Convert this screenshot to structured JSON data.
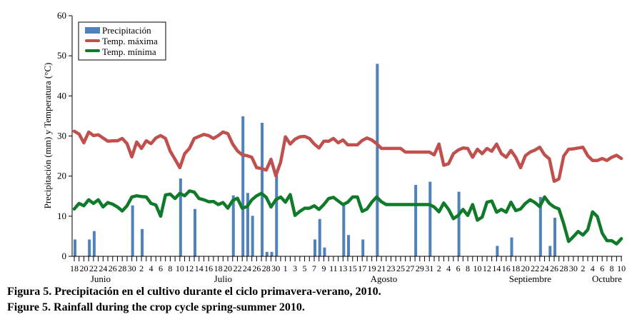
{
  "chart_data": {
    "type": "bar+line",
    "ylabel": "Precipitación (mm) y Temperatura (°C)",
    "ylim": [
      0,
      60
    ],
    "yticks": [
      0,
      10,
      20,
      30,
      40,
      50,
      60
    ],
    "grid": false,
    "legend_position": "top-left",
    "x": [
      "2010-06-18",
      "2010-06-19",
      "2010-06-20",
      "2010-06-21",
      "2010-06-22",
      "2010-06-23",
      "2010-06-24",
      "2010-06-25",
      "2010-06-26",
      "2010-06-27",
      "2010-06-28",
      "2010-06-29",
      "2010-06-30",
      "2010-07-01",
      "2010-07-02",
      "2010-07-03",
      "2010-07-04",
      "2010-07-05",
      "2010-07-06",
      "2010-07-07",
      "2010-07-08",
      "2010-07-09",
      "2010-07-10",
      "2010-07-11",
      "2010-07-12",
      "2010-07-13",
      "2010-07-14",
      "2010-07-15",
      "2010-07-16",
      "2010-07-17",
      "2010-07-18",
      "2010-07-19",
      "2010-07-20",
      "2010-07-21",
      "2010-07-22",
      "2010-07-23",
      "2010-07-24",
      "2010-07-25",
      "2010-07-26",
      "2010-07-27",
      "2010-07-28",
      "2010-07-29",
      "2010-07-30",
      "2010-07-31",
      "2010-08-01",
      "2010-08-02",
      "2010-08-03",
      "2010-08-04",
      "2010-08-05",
      "2010-08-06",
      "2010-08-07",
      "2010-08-08",
      "2010-08-09",
      "2010-08-10",
      "2010-08-11",
      "2010-08-12",
      "2010-08-13",
      "2010-08-14",
      "2010-08-15",
      "2010-08-16",
      "2010-08-17",
      "2010-08-18",
      "2010-08-19",
      "2010-08-20",
      "2010-08-21",
      "2010-08-22",
      "2010-08-23",
      "2010-08-24",
      "2010-08-25",
      "2010-08-26",
      "2010-08-27",
      "2010-08-28",
      "2010-08-29",
      "2010-08-30",
      "2010-08-31",
      "2010-09-01",
      "2010-09-02",
      "2010-09-03",
      "2010-09-04",
      "2010-09-05",
      "2010-09-06",
      "2010-09-07",
      "2010-09-08",
      "2010-09-09",
      "2010-09-10",
      "2010-09-11",
      "2010-09-12",
      "2010-09-13",
      "2010-09-14",
      "2010-09-15",
      "2010-09-16",
      "2010-09-17",
      "2010-09-18",
      "2010-09-19",
      "2010-09-20",
      "2010-09-21",
      "2010-09-22",
      "2010-09-23",
      "2010-09-24",
      "2010-09-25",
      "2010-09-26",
      "2010-09-27",
      "2010-09-28",
      "2010-09-29",
      "2010-09-30",
      "2010-10-01",
      "2010-10-02",
      "2010-10-03",
      "2010-10-04",
      "2010-10-05",
      "2010-10-06",
      "2010-10-07",
      "2010-10-08",
      "2010-10-09",
      "2010-10-10"
    ],
    "xtick_labels": [
      "18",
      "20",
      "22",
      "24",
      "26",
      "28",
      "30",
      "2",
      "4",
      "6",
      "8",
      "10",
      "12",
      "14",
      "16",
      "18",
      "20",
      "22",
      "24",
      "26",
      "28",
      "30",
      "1",
      "3",
      "5",
      "7",
      "9",
      "11",
      "13",
      "15",
      "17",
      "19",
      "21",
      "23",
      "25",
      "27",
      "29",
      "31",
      "2",
      "4",
      "6",
      "8",
      "10",
      "12",
      "14",
      "16",
      "18",
      "20",
      "22",
      "24",
      "26",
      "28",
      "30",
      "2",
      "4",
      "6",
      "8",
      "10"
    ],
    "month_labels": [
      "Junio",
      "Julio",
      "Agosto",
      "Septiembre",
      "Octubre"
    ],
    "series": [
      {
        "name": "Precipitación",
        "type": "bar",
        "color": "#4f81bd",
        "points": [
          [
            "2010-06-18",
            4.2
          ],
          [
            "2010-06-21",
            4.2
          ],
          [
            "2010-06-22",
            6.3
          ],
          [
            "2010-06-30",
            12.7
          ],
          [
            "2010-07-02",
            6.8
          ],
          [
            "2010-07-10",
            19.4
          ],
          [
            "2010-07-13",
            11.8
          ],
          [
            "2010-07-21",
            15.2
          ],
          [
            "2010-07-23",
            34.9
          ],
          [
            "2010-07-24",
            15.8
          ],
          [
            "2010-07-25",
            10.1
          ],
          [
            "2010-07-27",
            33.3
          ],
          [
            "2010-07-28",
            1.1
          ],
          [
            "2010-07-29",
            1.1
          ],
          [
            "2010-07-30",
            20.3
          ],
          [
            "2010-08-07",
            4.2
          ],
          [
            "2010-08-08",
            9.3
          ],
          [
            "2010-08-09",
            2.2
          ],
          [
            "2010-08-13",
            12.9
          ],
          [
            "2010-08-14",
            5.3
          ],
          [
            "2010-08-17",
            4.2
          ],
          [
            "2010-08-20",
            48
          ],
          [
            "2010-08-28",
            17.8
          ],
          [
            "2010-08-31",
            18.6
          ],
          [
            "2010-09-06",
            16.1
          ],
          [
            "2010-09-14",
            2.6
          ],
          [
            "2010-09-17",
            4.7
          ],
          [
            "2010-09-23",
            14.8
          ],
          [
            "2010-09-25",
            2.6
          ],
          [
            "2010-09-26",
            9.6
          ]
        ]
      },
      {
        "name": "Temp. máxima",
        "type": "line",
        "color": "#c0504d",
        "values": [
          31.2,
          30.5,
          28.3,
          31,
          30.1,
          30.3,
          29.5,
          28.7,
          28.8,
          28.8,
          29.4,
          28.1,
          24.8,
          28.5,
          26.9,
          28.8,
          28.1,
          29.5,
          30.1,
          29.4,
          26.2,
          24.2,
          22.1,
          25.6,
          26.9,
          29.4,
          29.9,
          30.4,
          30.1,
          29.4,
          30.1,
          31,
          30.6,
          28,
          26.3,
          25.3,
          25.1,
          24.7,
          22.1,
          21.9,
          21.5,
          24.2,
          20.1,
          23.5,
          29.8,
          28,
          29.2,
          29.8,
          29.9,
          29.4,
          28,
          27,
          28.7,
          28.7,
          29.4,
          28.3,
          29,
          27.8,
          27.8,
          27.8,
          28.9,
          29.5,
          29,
          28.1,
          26.9,
          26.9,
          26.9,
          26.9,
          26.9,
          26,
          26,
          26,
          26,
          26,
          26,
          25.3,
          28,
          22.7,
          23.1,
          25.6,
          26.5,
          27,
          26.9,
          24.7,
          26.7,
          25.6,
          26.9,
          26.2,
          28,
          25.6,
          24.7,
          26.4,
          24.7,
          22.1,
          25.1,
          26,
          26.5,
          27.2,
          25.3,
          24.3,
          18.7,
          19.3,
          25,
          26.7,
          26.8,
          27,
          27.2,
          25.1,
          23.9,
          23.9,
          24.4,
          23.9,
          24.7,
          25.2,
          24.4
        ]
      },
      {
        "name": "Temp. mínima",
        "type": "line",
        "color": "#0f7a2a",
        "values": [
          11.8,
          13.2,
          12.6,
          14.1,
          13.2,
          14.1,
          12.3,
          13.4,
          13,
          12.3,
          11.3,
          12.6,
          14.8,
          15.1,
          14.9,
          14.8,
          13.2,
          12.8,
          10,
          15.3,
          15.5,
          14.4,
          15.7,
          15.1,
          16.3,
          16,
          14.4,
          14.1,
          13.6,
          13.7,
          12.9,
          13.4,
          12,
          13.9,
          14.5,
          12,
          12.4,
          14.1,
          15.1,
          15.7,
          14.7,
          12.3,
          14.1,
          14.8,
          13.5,
          15.4,
          10.2,
          11.2,
          12,
          12,
          12.6,
          11.7,
          12.9,
          14.4,
          14.7,
          13.8,
          12.9,
          13.5,
          14.8,
          14.8,
          11.2,
          11.8,
          13.5,
          14.8,
          13.6,
          12.9,
          12.9,
          12.9,
          12.9,
          12.9,
          12.9,
          12.9,
          12.9,
          12.9,
          12.9,
          12.3,
          11.1,
          13.3,
          11.7,
          9.4,
          10.2,
          11.7,
          10.2,
          12.9,
          9,
          9.8,
          13.5,
          13.8,
          11,
          11.7,
          11,
          13.5,
          11.4,
          11.8,
          13.2,
          14.1,
          13.4,
          12.4,
          14.8,
          13.2,
          12.3,
          11.8,
          8.1,
          3.7,
          4.9,
          6.2,
          5.3,
          6.6,
          11.1,
          9.9,
          5.8,
          3.9,
          3.9,
          3.1,
          4.4
        ]
      }
    ]
  },
  "captions": {
    "es": "Figura 5. Precipitación en el cultivo durante el ciclo primavera-verano, 2010.",
    "en": "Figure 5. Rainfall during the crop cycle spring-summer 2010."
  }
}
